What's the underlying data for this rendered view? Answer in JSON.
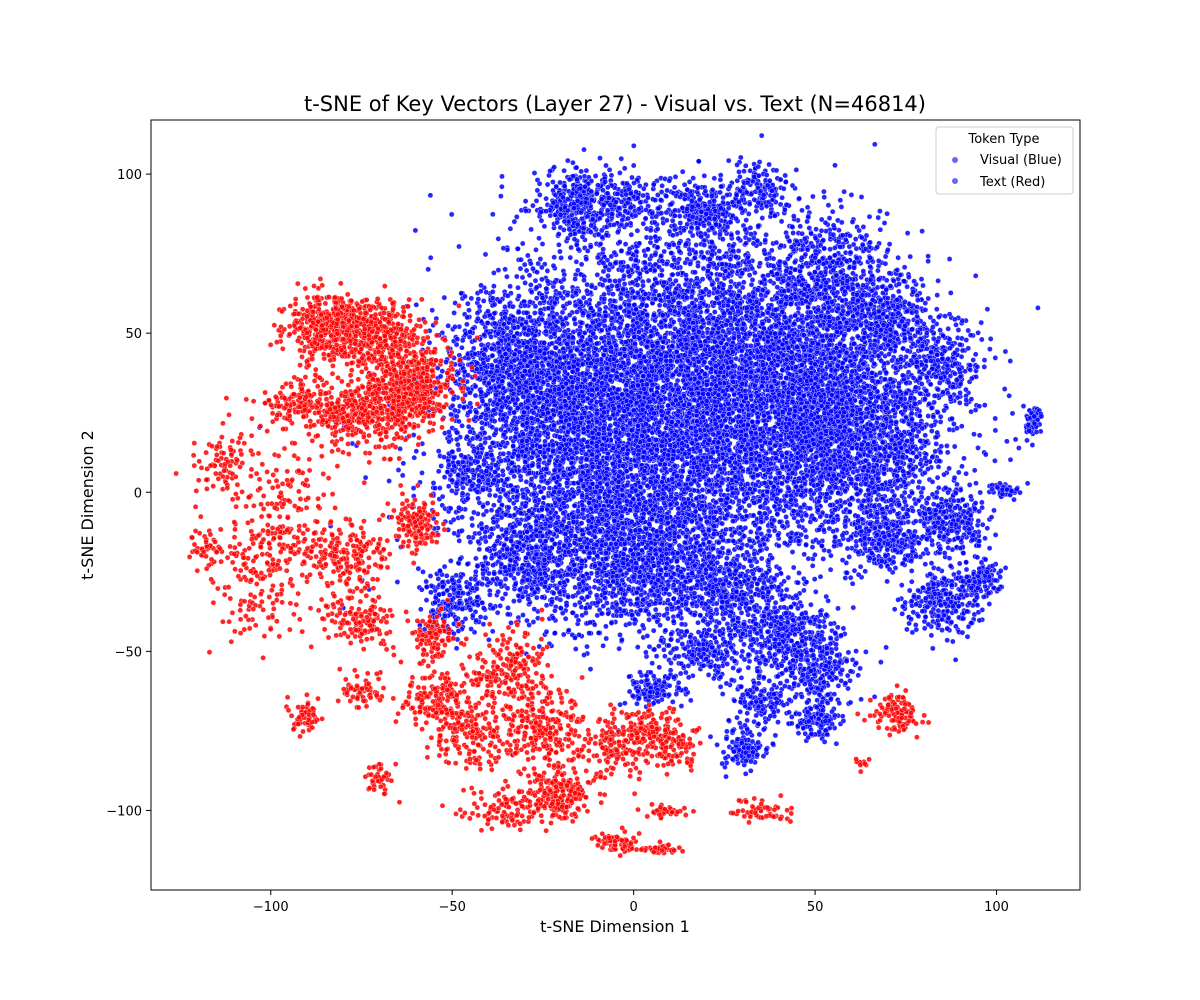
{
  "chart_data": {
    "type": "scatter",
    "title": "t-SNE of Key Vectors (Layer 27) - Visual vs. Text (N=46814)",
    "xlabel": "t-SNE Dimension 1",
    "ylabel": "t-SNE Dimension 2",
    "xlim": [
      -133,
      123
    ],
    "ylim": [
      -125,
      117
    ],
    "xticks": [
      -100,
      -50,
      0,
      50,
      100
    ],
    "yticks": [
      -100,
      -50,
      0,
      50,
      100
    ],
    "grid": false,
    "legend": {
      "title": "Token Type",
      "placement": "top-right"
    },
    "total_points": 46814,
    "series": [
      {
        "name": "Visual (Blue)",
        "color": "#0000ff",
        "clusters": [
          {
            "x": 10,
            "y": 10,
            "sx": 28,
            "sy": 22,
            "weight": 30
          },
          {
            "x": 45,
            "y": 35,
            "sx": 18,
            "sy": 18,
            "weight": 18
          },
          {
            "x": 60,
            "y": 15,
            "sx": 14,
            "sy": 14,
            "weight": 12
          },
          {
            "x": -20,
            "y": 30,
            "sx": 14,
            "sy": 18,
            "weight": 10
          },
          {
            "x": 0,
            "y": 30,
            "sx": 20,
            "sy": 20,
            "weight": 14
          },
          {
            "x": 20,
            "y": 60,
            "sx": 22,
            "sy": 16,
            "weight": 10
          },
          {
            "x": -35,
            "y": 40,
            "sx": 8,
            "sy": 12,
            "weight": 4
          },
          {
            "x": -15,
            "y": 90,
            "sx": 6,
            "sy": 6,
            "weight": 3
          },
          {
            "x": 0,
            "y": 92,
            "sx": 5,
            "sy": 5,
            "weight": 1
          },
          {
            "x": 35,
            "y": 95,
            "sx": 4,
            "sy": 4,
            "weight": 1
          },
          {
            "x": 20,
            "y": 88,
            "sx": 6,
            "sy": 5,
            "weight": 2
          },
          {
            "x": 55,
            "y": 70,
            "sx": 8,
            "sy": 8,
            "weight": 3
          },
          {
            "x": 0,
            "y": -20,
            "sx": 14,
            "sy": 12,
            "weight": 10
          },
          {
            "x": -30,
            "y": -20,
            "sx": 8,
            "sy": 8,
            "weight": 4
          },
          {
            "x": 25,
            "y": -30,
            "sx": 8,
            "sy": 6,
            "weight": 3
          },
          {
            "x": 40,
            "y": -45,
            "sx": 7,
            "sy": 6,
            "weight": 3
          },
          {
            "x": 50,
            "y": -55,
            "sx": 6,
            "sy": 6,
            "weight": 2
          },
          {
            "x": 35,
            "y": -65,
            "sx": 4,
            "sy": 4,
            "weight": 1
          },
          {
            "x": 50,
            "y": -72,
            "sx": 3,
            "sy": 3,
            "weight": 1
          },
          {
            "x": 30,
            "y": -80,
            "sx": 3,
            "sy": 4,
            "weight": 1
          },
          {
            "x": 85,
            "y": 40,
            "sx": 5,
            "sy": 7,
            "weight": 2
          },
          {
            "x": 88,
            "y": -10,
            "sx": 5,
            "sy": 5,
            "weight": 2
          },
          {
            "x": 85,
            "y": -35,
            "sx": 5,
            "sy": 5,
            "weight": 2
          },
          {
            "x": 95,
            "y": -28,
            "sx": 3,
            "sy": 3,
            "weight": 1
          },
          {
            "x": 110,
            "y": 22,
            "sx": 1.2,
            "sy": 3,
            "weight": 0.5
          },
          {
            "x": 102,
            "y": 1,
            "sx": 2,
            "sy": 1,
            "weight": 0.4
          },
          {
            "x": -45,
            "y": 5,
            "sx": 4,
            "sy": 5,
            "weight": 1
          },
          {
            "x": -50,
            "y": -35,
            "sx": 4,
            "sy": 6,
            "weight": 1.5
          },
          {
            "x": 5,
            "y": -62,
            "sx": 4,
            "sy": 3,
            "weight": 1
          },
          {
            "x": 20,
            "y": -50,
            "sx": 6,
            "sy": 4,
            "weight": 1.5
          },
          {
            "x": 70,
            "y": -15,
            "sx": 5,
            "sy": 5,
            "weight": 2
          },
          {
            "x": 70,
            "y": 55,
            "sx": 6,
            "sy": 6,
            "weight": 2
          }
        ]
      },
      {
        "name": "Text (Red)",
        "color": "#ff0000",
        "clusters": [
          {
            "x": -85,
            "y": 52,
            "sx": 5,
            "sy": 5,
            "weight": 3
          },
          {
            "x": -72,
            "y": 50,
            "sx": 6,
            "sy": 5,
            "weight": 3
          },
          {
            "x": -60,
            "y": 35,
            "sx": 6,
            "sy": 7,
            "weight": 3
          },
          {
            "x": -78,
            "y": 25,
            "sx": 6,
            "sy": 5,
            "weight": 2
          },
          {
            "x": -68,
            "y": 28,
            "sx": 5,
            "sy": 6,
            "weight": 2
          },
          {
            "x": -60,
            "y": -10,
            "sx": 3,
            "sy": 4,
            "weight": 1
          },
          {
            "x": -80,
            "y": -20,
            "sx": 6,
            "sy": 6,
            "weight": 1.5
          },
          {
            "x": -95,
            "y": -10,
            "sx": 8,
            "sy": 14,
            "weight": 1.5
          },
          {
            "x": -75,
            "y": -40,
            "sx": 5,
            "sy": 4,
            "weight": 1
          },
          {
            "x": -105,
            "y": -25,
            "sx": 6,
            "sy": 10,
            "weight": 1
          },
          {
            "x": -90,
            "y": -70,
            "sx": 2,
            "sy": 3,
            "weight": 0.4
          },
          {
            "x": -75,
            "y": -62,
            "sx": 3,
            "sy": 3,
            "weight": 0.5
          },
          {
            "x": -70,
            "y": -90,
            "sx": 2,
            "sy": 3,
            "weight": 0.3
          },
          {
            "x": -55,
            "y": -65,
            "sx": 5,
            "sy": 4,
            "weight": 1
          },
          {
            "x": -45,
            "y": -75,
            "sx": 6,
            "sy": 6,
            "weight": 1.5
          },
          {
            "x": -35,
            "y": -55,
            "sx": 6,
            "sy": 6,
            "weight": 1.5
          },
          {
            "x": -25,
            "y": -75,
            "sx": 6,
            "sy": 6,
            "weight": 2
          },
          {
            "x": -20,
            "y": -95,
            "sx": 4,
            "sy": 4,
            "weight": 1.5
          },
          {
            "x": -35,
            "y": -100,
            "sx": 6,
            "sy": 3,
            "weight": 0.8
          },
          {
            "x": -5,
            "y": -80,
            "sx": 5,
            "sy": 5,
            "weight": 1
          },
          {
            "x": 5,
            "y": -75,
            "sx": 5,
            "sy": 4,
            "weight": 1
          },
          {
            "x": 12,
            "y": -80,
            "sx": 3,
            "sy": 5,
            "weight": 0.6
          },
          {
            "x": -5,
            "y": -110,
            "sx": 3,
            "sy": 2,
            "weight": 0.5
          },
          {
            "x": 8,
            "y": -112,
            "sx": 2,
            "sy": 1,
            "weight": 0.3
          },
          {
            "x": 10,
            "y": -100,
            "sx": 3,
            "sy": 1,
            "weight": 0.3
          },
          {
            "x": 35,
            "y": -100,
            "sx": 4,
            "sy": 2,
            "weight": 0.4
          },
          {
            "x": 72,
            "y": -70,
            "sx": 3,
            "sy": 3,
            "weight": 0.8
          },
          {
            "x": 63,
            "y": -85,
            "sx": 1,
            "sy": 1,
            "weight": 0.1
          },
          {
            "x": -55,
            "y": -45,
            "sx": 3,
            "sy": 4,
            "weight": 0.8
          },
          {
            "x": -92,
            "y": 28,
            "sx": 5,
            "sy": 3,
            "weight": 1
          },
          {
            "x": -113,
            "y": 8,
            "sx": 4,
            "sy": 6,
            "weight": 0.6
          },
          {
            "x": -118,
            "y": -18,
            "sx": 2,
            "sy": 3,
            "weight": 0.3
          }
        ]
      }
    ]
  }
}
